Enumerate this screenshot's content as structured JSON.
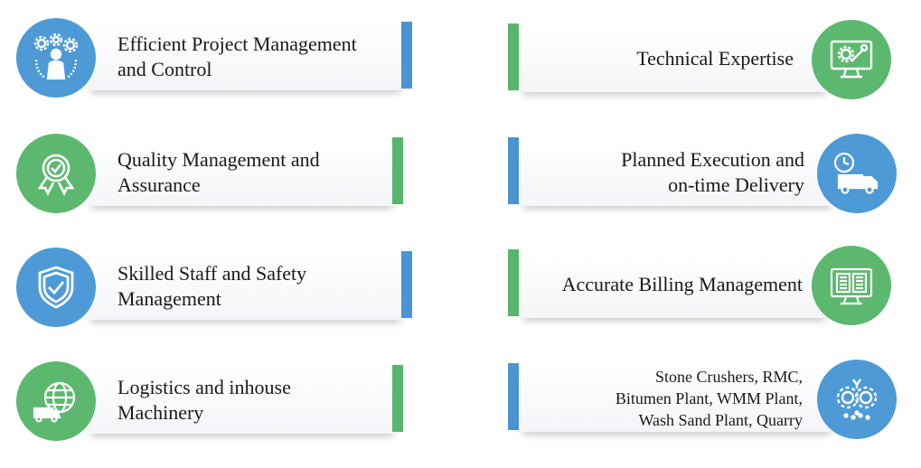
{
  "colors": {
    "blue": "#4d9ad6",
    "green": "#5cb86e",
    "bar_blue": "#4a94d1",
    "bar_green": "#5ab56c"
  },
  "left_items": [
    {
      "lines": [
        "Efficient Project Management",
        "and Control"
      ],
      "icon": "team-gears-icon",
      "circle": "blue",
      "bar": "blue"
    },
    {
      "lines": [
        "Quality Management and",
        "Assurance"
      ],
      "icon": "award-badge-icon",
      "circle": "green",
      "bar": "green"
    },
    {
      "lines": [
        "Skilled Staff and Safety",
        "Management"
      ],
      "icon": "shield-check-icon",
      "circle": "blue",
      "bar": "blue"
    },
    {
      "lines": [
        "Logistics and inhouse",
        "Machinery"
      ],
      "icon": "globe-truck-icon",
      "circle": "green",
      "bar": "green"
    }
  ],
  "right_items": [
    {
      "lines": [
        "Technical Expertise"
      ],
      "icon": "monitor-tools-icon",
      "circle": "green",
      "bar": "green"
    },
    {
      "lines": [
        "Planned Execution and",
        "on-time Delivery"
      ],
      "icon": "delivery-truck-clock-icon",
      "circle": "blue",
      "bar": "blue"
    },
    {
      "lines": [
        "Accurate Billing Management"
      ],
      "icon": "billing-monitor-icon",
      "circle": "green",
      "bar": "green"
    },
    {
      "lines": [
        "Stone Crushers, RMC,",
        "Bitumen Plant, WMM Plant,",
        "Wash Sand Plant, Quarry"
      ],
      "icon": "gears-plant-icon",
      "circle": "blue",
      "bar": "blue"
    }
  ]
}
